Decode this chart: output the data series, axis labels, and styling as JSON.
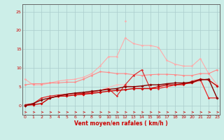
{
  "background_color": "#cceee8",
  "grid_color": "#aacccc",
  "xlabel": "Vent moyen/en rafales ( km/h )",
  "x": [
    0,
    1,
    2,
    3,
    4,
    5,
    6,
    7,
    8,
    9,
    10,
    11,
    12,
    13,
    14,
    15,
    16,
    17,
    18,
    19,
    20,
    21,
    22,
    23
  ],
  "series": [
    {
      "color": "#ffaaaa",
      "lw": 0.8,
      "marker": "D",
      "ms": 1.5,
      "values": [
        7.0,
        5.5,
        5.5,
        6.0,
        6.5,
        6.8,
        7.0,
        7.5,
        8.5,
        10.5,
        13.0,
        13.0,
        18.0,
        16.5,
        16.0,
        16.0,
        15.5,
        12.0,
        11.0,
        10.5,
        10.5,
        12.5,
        8.5,
        5.5
      ]
    },
    {
      "color": "#ffaaaa",
      "lw": 0.8,
      "marker": "D",
      "ms": 1.5,
      "values": [
        null,
        null,
        null,
        null,
        null,
        null,
        null,
        null,
        null,
        null,
        null,
        null,
        22.5,
        null,
        null,
        null,
        null,
        null,
        null,
        null,
        null,
        null,
        null,
        null
      ]
    },
    {
      "color": "#ff8888",
      "lw": 0.8,
      "marker": "D",
      "ms": 1.5,
      "values": [
        5.5,
        5.8,
        5.8,
        6.0,
        6.0,
        6.2,
        6.2,
        7.0,
        8.0,
        9.0,
        8.8,
        8.5,
        8.5,
        8.2,
        8.0,
        8.2,
        8.3,
        8.3,
        8.2,
        8.0,
        8.0,
        8.5,
        8.5,
        9.5
      ]
    },
    {
      "color": "#ffbbbb",
      "lw": 0.8,
      "marker": "D",
      "ms": 1.5,
      "values": [
        0.2,
        0.3,
        2.0,
        2.5,
        2.2,
        2.8,
        3.0,
        2.8,
        3.5,
        4.0,
        4.8,
        5.5,
        5.5,
        5.0,
        4.5,
        4.5,
        5.0,
        4.8,
        5.5,
        5.8,
        6.0,
        6.5,
        2.0,
        2.0
      ]
    },
    {
      "color": "#dd2222",
      "lw": 0.8,
      "marker": "D",
      "ms": 1.5,
      "values": [
        0.2,
        0.5,
        2.0,
        2.5,
        2.8,
        3.0,
        3.2,
        3.2,
        3.5,
        4.0,
        4.5,
        2.5,
        5.5,
        8.0,
        9.5,
        4.5,
        4.5,
        5.0,
        5.5,
        5.5,
        6.5,
        7.0,
        2.0,
        2.0
      ]
    },
    {
      "color": "#cc0000",
      "lw": 1.0,
      "marker": "D",
      "ms": 1.8,
      "values": [
        0.0,
        0.2,
        0.5,
        2.0,
        2.5,
        2.5,
        2.8,
        3.0,
        3.2,
        3.5,
        3.8,
        4.0,
        4.2,
        4.5,
        4.5,
        4.5,
        5.0,
        5.5,
        5.5,
        5.8,
        6.0,
        7.0,
        6.8,
        5.2
      ]
    },
    {
      "color": "#880000",
      "lw": 1.0,
      "marker": "D",
      "ms": 1.8,
      "values": [
        0.0,
        0.5,
        1.5,
        2.0,
        2.5,
        3.0,
        3.3,
        3.5,
        3.8,
        4.0,
        4.3,
        4.5,
        5.0,
        5.0,
        5.2,
        5.5,
        5.5,
        5.8,
        6.0,
        6.0,
        6.2,
        6.8,
        7.0,
        2.0
      ]
    }
  ],
  "xlim": [
    -0.3,
    23.3
  ],
  "ylim": [
    -2.5,
    27
  ],
  "yticks": [
    0,
    5,
    10,
    15,
    20,
    25
  ],
  "xticks": [
    0,
    1,
    2,
    3,
    4,
    5,
    6,
    7,
    8,
    9,
    10,
    11,
    12,
    13,
    14,
    15,
    16,
    17,
    18,
    19,
    20,
    21,
    22,
    23
  ],
  "tick_fontsize": 4.5,
  "tick_color": "#cc0000",
  "xlabel_fontsize": 5.5,
  "xlabel_color": "#cc0000"
}
